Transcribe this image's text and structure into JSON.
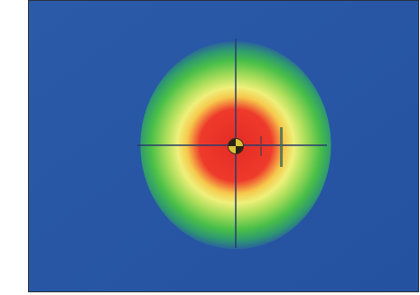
{
  "image": {
    "type": "beam profile heatmap",
    "colors": {
      "background": "#2957a6",
      "core": "#e8322a",
      "inner_ring": "#f7e24a",
      "outer_ring": "#3fbf4e",
      "marker": "#d9c23a"
    }
  }
}
